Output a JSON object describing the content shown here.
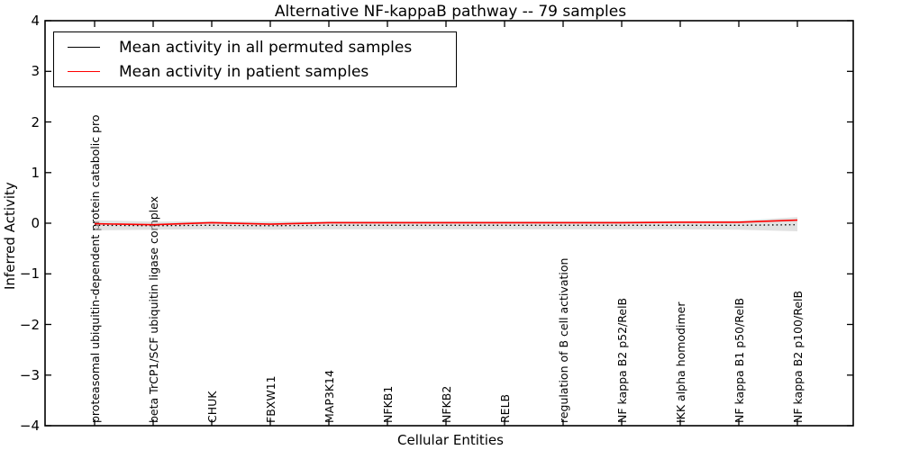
{
  "title": "Alternative NF-kappaB pathway -- 79 samples",
  "axes": {
    "xlabel": "Cellular Entities",
    "ylabel": "Inferred Activity",
    "ytick_values": [
      4,
      3,
      2,
      1,
      0,
      -1,
      -2,
      -3,
      -4
    ]
  },
  "legend": {
    "entries": [
      {
        "label": "Mean activity in all permuted samples",
        "color": "#000000"
      },
      {
        "label": "Mean activity in patient samples",
        "color": "#ff0000"
      }
    ]
  },
  "colors": {
    "permuted_line": "#000000",
    "patient_line": "#ff0000",
    "confidence_band": "#c8c8c8",
    "frame": "#000000",
    "background": "#ffffff"
  },
  "chart_data": {
    "type": "line",
    "title": "Alternative NF-kappaB pathway -- 79 samples",
    "xlabel": "Cellular Entities",
    "ylabel": "Inferred Activity",
    "ylim": [
      -4,
      4
    ],
    "grid": false,
    "legend_position": "upper left",
    "categories": [
      "proteasomal ubiquitin-dependent protein catabolic pro",
      "beta TrCP1/SCF ubiquitin ligase complex",
      "CHUK",
      "FBXW11",
      "MAP3K14",
      "NFKB1",
      "NFKB2",
      "RELB",
      "regulation of B cell activation",
      "NF kappa B2 p52/RelB",
      "IKK alpha homodimer",
      "NF kappa B1 p50/RelB",
      "NF kappa B2 p100/RelB"
    ],
    "series": [
      {
        "name": "Mean activity in all permuted samples",
        "color": "#000000",
        "linestyle": "dotted",
        "values": [
          -0.04,
          -0.05,
          -0.04,
          -0.05,
          -0.04,
          -0.04,
          -0.04,
          -0.04,
          -0.04,
          -0.04,
          -0.04,
          -0.04,
          -0.03
        ]
      },
      {
        "name": "Mean activity in patient samples",
        "color": "#ff0000",
        "linestyle": "solid",
        "values": [
          -0.01,
          -0.03,
          0.01,
          -0.02,
          0.01,
          0.01,
          0.01,
          0.01,
          0.01,
          0.01,
          0.02,
          0.02,
          0.06
        ]
      }
    ],
    "band": {
      "name": "permuted activity range",
      "color": "#c8c8c8",
      "center": [
        -0.04,
        -0.05,
        -0.04,
        -0.05,
        -0.04,
        -0.04,
        -0.04,
        -0.04,
        -0.04,
        -0.04,
        -0.04,
        -0.04,
        -0.02
      ],
      "halfwidth": [
        0.1,
        0.08,
        0.08,
        0.08,
        0.08,
        0.08,
        0.08,
        0.08,
        0.08,
        0.08,
        0.08,
        0.09,
        0.14
      ]
    }
  }
}
